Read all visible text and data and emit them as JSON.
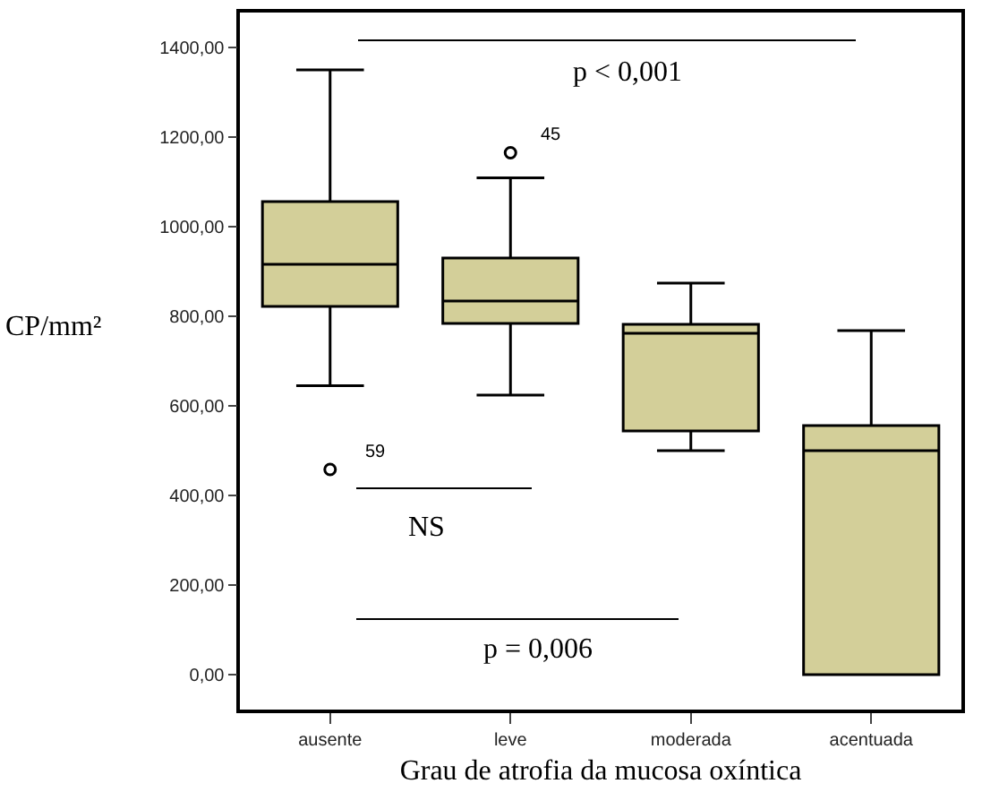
{
  "chart_data": {
    "type": "box",
    "xlabel": "Grau de atrofia da mucosa oxíntica",
    "ylabel": "CP/mm²",
    "categories": [
      "ausente",
      "leve",
      "moderada",
      "acentuada"
    ],
    "boxes": [
      {
        "low": 645,
        "q1": 822,
        "median": 916,
        "q3": 1056,
        "high": 1350,
        "outliers": [
          458
        ]
      },
      {
        "low": 624,
        "q1": 784,
        "median": 834,
        "q3": 930,
        "high": 1109,
        "outliers": [
          1165
        ]
      },
      {
        "low": 500,
        "q1": 544,
        "median": 762,
        "q3": 782,
        "high": 874
      },
      {
        "low": 0,
        "q1": 0,
        "median": 500,
        "q3": 556,
        "high": 768
      }
    ],
    "color": "#d3cf99",
    "ylim": [
      -78,
      1478
    ],
    "yticks": [
      {
        "value": 0,
        "label": "0,00"
      },
      {
        "value": 200,
        "label": "200,00"
      },
      {
        "value": 400,
        "label": "400,00"
      },
      {
        "value": 600,
        "label": "600,00"
      },
      {
        "value": 800,
        "label": "800,00"
      },
      {
        "value": 1000,
        "label": "1000,00"
      },
      {
        "value": 1200,
        "label": "1200,00"
      },
      {
        "value": 1400,
        "label": "1400,00"
      }
    ],
    "grid": false,
    "annotations": [
      "p < 0,001",
      "NS",
      "p = 0,006",
      "59",
      "45"
    ]
  }
}
